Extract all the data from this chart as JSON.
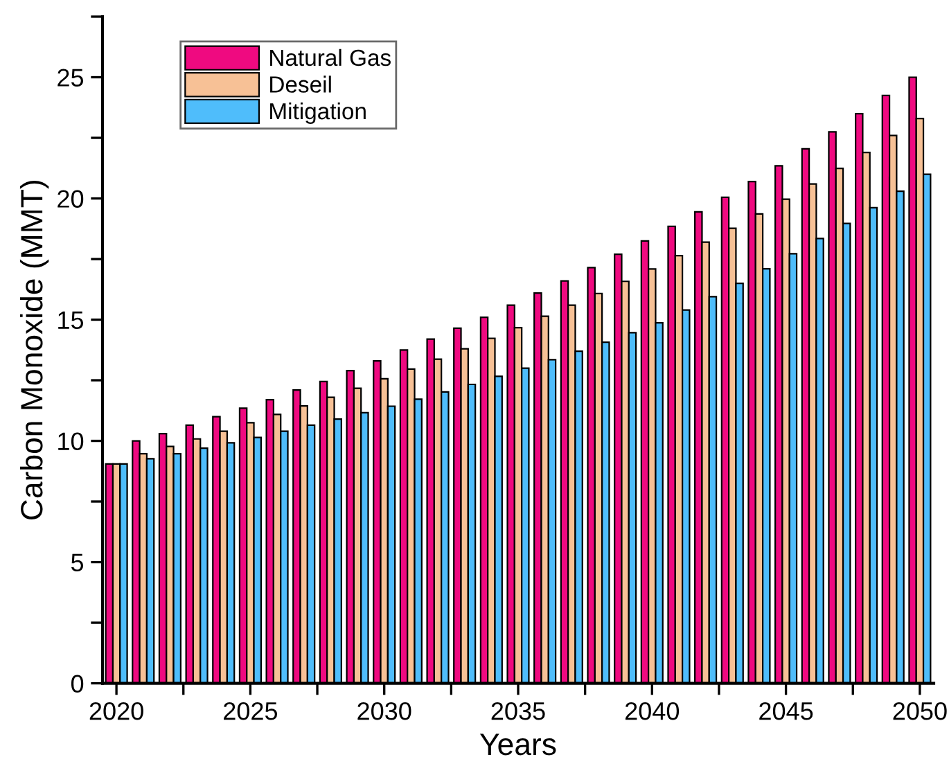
{
  "chart_data": {
    "type": "bar",
    "xlabel": "Years",
    "ylabel": "Carbon Monoxide (MMT)",
    "x": [
      2020,
      2021,
      2022,
      2023,
      2024,
      2025,
      2026,
      2027,
      2028,
      2029,
      2030,
      2031,
      2032,
      2033,
      2034,
      2035,
      2036,
      2037,
      2038,
      2039,
      2040,
      2041,
      2042,
      2043,
      2044,
      2045,
      2046,
      2047,
      2048,
      2049,
      2050
    ],
    "series": [
      {
        "name": "Natural Gas",
        "color": "#ef0a80",
        "values": [
          9.05,
          10.0,
          10.3,
          10.65,
          11.0,
          11.35,
          11.7,
          12.1,
          12.45,
          12.9,
          13.3,
          13.75,
          14.2,
          14.65,
          15.1,
          15.6,
          16.1,
          16.6,
          17.15,
          17.7,
          18.25,
          18.85,
          19.45,
          20.05,
          20.7,
          21.35,
          22.05,
          22.75,
          23.5,
          24.25,
          25.0
        ]
      },
      {
        "name": "Deseil",
        "color": "#f7c196",
        "values": [
          9.05,
          9.47,
          9.77,
          10.08,
          10.4,
          10.75,
          11.09,
          11.44,
          11.8,
          12.17,
          12.56,
          12.96,
          13.37,
          13.8,
          14.23,
          14.67,
          15.14,
          15.6,
          16.08,
          16.58,
          17.09,
          17.64,
          18.2,
          18.77,
          19.36,
          19.97,
          20.6,
          21.24,
          21.9,
          22.6,
          23.3
        ]
      },
      {
        "name": "Mitigation",
        "color": "#4fbdfb",
        "values": [
          9.05,
          9.26,
          9.47,
          9.7,
          9.92,
          10.14,
          10.4,
          10.65,
          10.9,
          11.16,
          11.43,
          11.72,
          12.02,
          12.33,
          12.66,
          13.0,
          13.35,
          13.7,
          14.07,
          14.46,
          14.87,
          15.4,
          15.95,
          16.5,
          17.1,
          17.72,
          18.35,
          18.97,
          19.62,
          20.3,
          21.0
        ]
      }
    ],
    "xlim": [
      2019.48,
      2050.52
    ],
    "xticks": [
      2020,
      {
        "value": 2022.5,
        "label": null
      },
      2025,
      {
        "value": 2027.5,
        "label": null
      },
      2030,
      {
        "value": 2032.5,
        "label": null
      },
      2035,
      {
        "value": 2037.5,
        "label": null
      },
      2040,
      {
        "value": 2042.5,
        "label": null
      },
      2045,
      {
        "value": 2047.5,
        "label": null
      },
      2050
    ],
    "ylim": [
      0,
      27.5
    ],
    "yticks": [
      0,
      {
        "value": 2.5,
        "label": null
      },
      5,
      {
        "value": 7.5,
        "label": null
      },
      10,
      {
        "value": 12.5,
        "label": null
      },
      15,
      {
        "value": 17.5,
        "label": null
      },
      20,
      {
        "value": 22.5,
        "label": null
      },
      25,
      {
        "value": 27.5,
        "label": null
      }
    ],
    "legend": "top left",
    "grid": false
  }
}
